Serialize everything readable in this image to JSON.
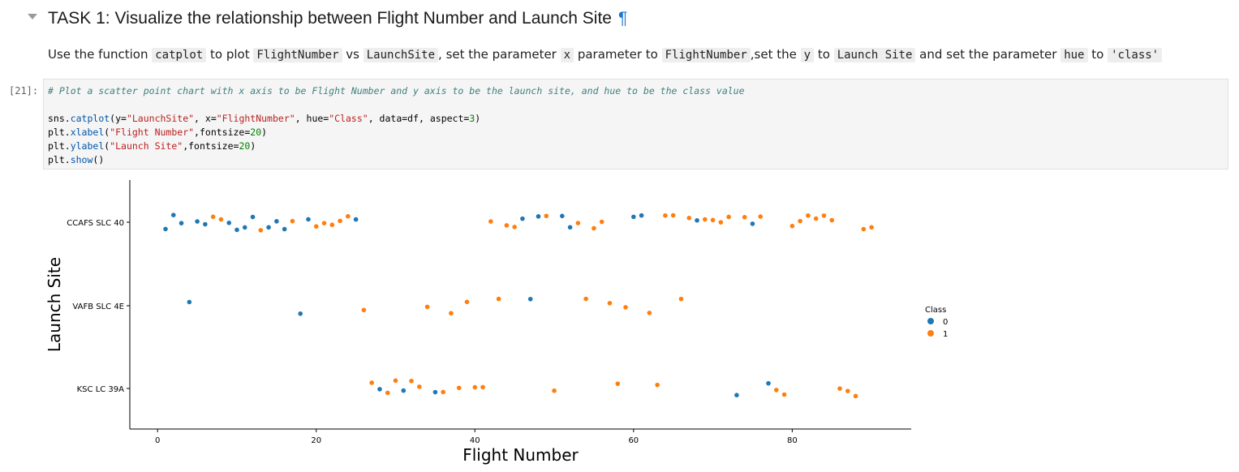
{
  "heading": {
    "text": "TASK 1: Visualize the relationship between Flight Number and Launch Site",
    "anchor": "¶"
  },
  "instruction": {
    "p1": "Use the function ",
    "c1": "catplot",
    "p2": " to plot ",
    "c2": "FlightNumber",
    "p3": " vs ",
    "c3": "LaunchSite",
    "p4": ", set the parameter ",
    "c4": "x",
    "p5": " parameter to ",
    "c5": "FlightNumber",
    "p6": ",set the ",
    "c6": "y",
    "p7": " to ",
    "c7": "Launch Site",
    "p8": " and set the parameter ",
    "c8": "hue",
    "p9": " to ",
    "c9": "'class'"
  },
  "cell": {
    "prompt": "[21]:",
    "comment": "# Plot a scatter point chart with x axis to be Flight Number and y axis to be the launch site, and hue to be the class value",
    "line1": {
      "a": "sns.",
      "b": "catplot",
      "c": "(y=",
      "d": "\"LaunchSite\"",
      "e": ", x=",
      "f": "\"FlightNumber\"",
      "g": ", hue=",
      "h": "\"Class\"",
      "i": ", data=df, aspect=",
      "j": "3",
      "k": ")"
    },
    "line2": {
      "a": "plt.",
      "b": "xlabel",
      "c": "(",
      "d": "\"Flight Number\"",
      "e": ",fontsize=",
      "f": "20",
      "g": ")"
    },
    "line3": {
      "a": "plt.",
      "b": "ylabel",
      "c": "(",
      "d": "\"Launch Site\"",
      "e": ",fontsize=",
      "f": "20",
      "g": ")"
    },
    "line4": {
      "a": "plt.",
      "b": "show",
      "c": "()"
    }
  },
  "colors": {
    "class0": "#1f77b4",
    "class1": "#ff7f0e"
  },
  "chart_data": {
    "type": "scatter",
    "xlabel": "Flight Number",
    "ylabel": "Launch Site",
    "categories": [
      "CCAFS SLC 40",
      "VAFB SLC 4E",
      "KSC LC 39A"
    ],
    "xlim": [
      -3.5,
      95
    ],
    "xticks": [
      0,
      20,
      40,
      60,
      80
    ],
    "legend_title": "Class",
    "legend_position": "right",
    "series": [
      {
        "name": "0",
        "points": [
          {
            "x": 1,
            "site": "CCAFS SLC 40"
          },
          {
            "x": 2,
            "site": "CCAFS SLC 40"
          },
          {
            "x": 3,
            "site": "CCAFS SLC 40"
          },
          {
            "x": 5,
            "site": "CCAFS SLC 40"
          },
          {
            "x": 6,
            "site": "CCAFS SLC 40"
          },
          {
            "x": 9,
            "site": "CCAFS SLC 40"
          },
          {
            "x": 10,
            "site": "CCAFS SLC 40"
          },
          {
            "x": 11,
            "site": "CCAFS SLC 40"
          },
          {
            "x": 12,
            "site": "CCAFS SLC 40"
          },
          {
            "x": 14,
            "site": "CCAFS SLC 40"
          },
          {
            "x": 15,
            "site": "CCAFS SLC 40"
          },
          {
            "x": 16,
            "site": "CCAFS SLC 40"
          },
          {
            "x": 19,
            "site": "CCAFS SLC 40"
          },
          {
            "x": 25,
            "site": "CCAFS SLC 40"
          },
          {
            "x": 46,
            "site": "CCAFS SLC 40"
          },
          {
            "x": 48,
            "site": "CCAFS SLC 40"
          },
          {
            "x": 51,
            "site": "CCAFS SLC 40"
          },
          {
            "x": 52,
            "site": "CCAFS SLC 40"
          },
          {
            "x": 60,
            "site": "CCAFS SLC 40"
          },
          {
            "x": 61,
            "site": "CCAFS SLC 40"
          },
          {
            "x": 68,
            "site": "CCAFS SLC 40"
          },
          {
            "x": 75,
            "site": "CCAFS SLC 40"
          },
          {
            "x": 4,
            "site": "VAFB SLC 4E"
          },
          {
            "x": 18,
            "site": "VAFB SLC 4E"
          },
          {
            "x": 47,
            "site": "VAFB SLC 4E"
          },
          {
            "x": 28,
            "site": "KSC LC 39A"
          },
          {
            "x": 31,
            "site": "KSC LC 39A"
          },
          {
            "x": 35,
            "site": "KSC LC 39A"
          },
          {
            "x": 73,
            "site": "KSC LC 39A"
          },
          {
            "x": 77,
            "site": "KSC LC 39A"
          }
        ]
      },
      {
        "name": "1",
        "points": [
          {
            "x": 7,
            "site": "CCAFS SLC 40"
          },
          {
            "x": 8,
            "site": "CCAFS SLC 40"
          },
          {
            "x": 13,
            "site": "CCAFS SLC 40"
          },
          {
            "x": 17,
            "site": "CCAFS SLC 40"
          },
          {
            "x": 20,
            "site": "CCAFS SLC 40"
          },
          {
            "x": 21,
            "site": "CCAFS SLC 40"
          },
          {
            "x": 22,
            "site": "CCAFS SLC 40"
          },
          {
            "x": 23,
            "site": "CCAFS SLC 40"
          },
          {
            "x": 24,
            "site": "CCAFS SLC 40"
          },
          {
            "x": 42,
            "site": "CCAFS SLC 40"
          },
          {
            "x": 44,
            "site": "CCAFS SLC 40"
          },
          {
            "x": 45,
            "site": "CCAFS SLC 40"
          },
          {
            "x": 49,
            "site": "CCAFS SLC 40"
          },
          {
            "x": 53,
            "site": "CCAFS SLC 40"
          },
          {
            "x": 55,
            "site": "CCAFS SLC 40"
          },
          {
            "x": 56,
            "site": "CCAFS SLC 40"
          },
          {
            "x": 64,
            "site": "CCAFS SLC 40"
          },
          {
            "x": 65,
            "site": "CCAFS SLC 40"
          },
          {
            "x": 67,
            "site": "CCAFS SLC 40"
          },
          {
            "x": 69,
            "site": "CCAFS SLC 40"
          },
          {
            "x": 70,
            "site": "CCAFS SLC 40"
          },
          {
            "x": 71,
            "site": "CCAFS SLC 40"
          },
          {
            "x": 72,
            "site": "CCAFS SLC 40"
          },
          {
            "x": 74,
            "site": "CCAFS SLC 40"
          },
          {
            "x": 76,
            "site": "CCAFS SLC 40"
          },
          {
            "x": 80,
            "site": "CCAFS SLC 40"
          },
          {
            "x": 81,
            "site": "CCAFS SLC 40"
          },
          {
            "x": 82,
            "site": "CCAFS SLC 40"
          },
          {
            "x": 83,
            "site": "CCAFS SLC 40"
          },
          {
            "x": 84,
            "site": "CCAFS SLC 40"
          },
          {
            "x": 85,
            "site": "CCAFS SLC 40"
          },
          {
            "x": 89,
            "site": "CCAFS SLC 40"
          },
          {
            "x": 90,
            "site": "CCAFS SLC 40"
          },
          {
            "x": 26,
            "site": "VAFB SLC 4E"
          },
          {
            "x": 34,
            "site": "VAFB SLC 4E"
          },
          {
            "x": 37,
            "site": "VAFB SLC 4E"
          },
          {
            "x": 39,
            "site": "VAFB SLC 4E"
          },
          {
            "x": 43,
            "site": "VAFB SLC 4E"
          },
          {
            "x": 54,
            "site": "VAFB SLC 4E"
          },
          {
            "x": 57,
            "site": "VAFB SLC 4E"
          },
          {
            "x": 59,
            "site": "VAFB SLC 4E"
          },
          {
            "x": 62,
            "site": "VAFB SLC 4E"
          },
          {
            "x": 66,
            "site": "VAFB SLC 4E"
          },
          {
            "x": 27,
            "site": "KSC LC 39A"
          },
          {
            "x": 29,
            "site": "KSC LC 39A"
          },
          {
            "x": 30,
            "site": "KSC LC 39A"
          },
          {
            "x": 32,
            "site": "KSC LC 39A"
          },
          {
            "x": 33,
            "site": "KSC LC 39A"
          },
          {
            "x": 36,
            "site": "KSC LC 39A"
          },
          {
            "x": 38,
            "site": "KSC LC 39A"
          },
          {
            "x": 40,
            "site": "KSC LC 39A"
          },
          {
            "x": 41,
            "site": "KSC LC 39A"
          },
          {
            "x": 50,
            "site": "KSC LC 39A"
          },
          {
            "x": 58,
            "site": "KSC LC 39A"
          },
          {
            "x": 63,
            "site": "KSC LC 39A"
          },
          {
            "x": 78,
            "site": "KSC LC 39A"
          },
          {
            "x": 79,
            "site": "KSC LC 39A"
          },
          {
            "x": 86,
            "site": "KSC LC 39A"
          },
          {
            "x": 87,
            "site": "KSC LC 39A"
          },
          {
            "x": 88,
            "site": "KSC LC 39A"
          }
        ]
      }
    ]
  }
}
